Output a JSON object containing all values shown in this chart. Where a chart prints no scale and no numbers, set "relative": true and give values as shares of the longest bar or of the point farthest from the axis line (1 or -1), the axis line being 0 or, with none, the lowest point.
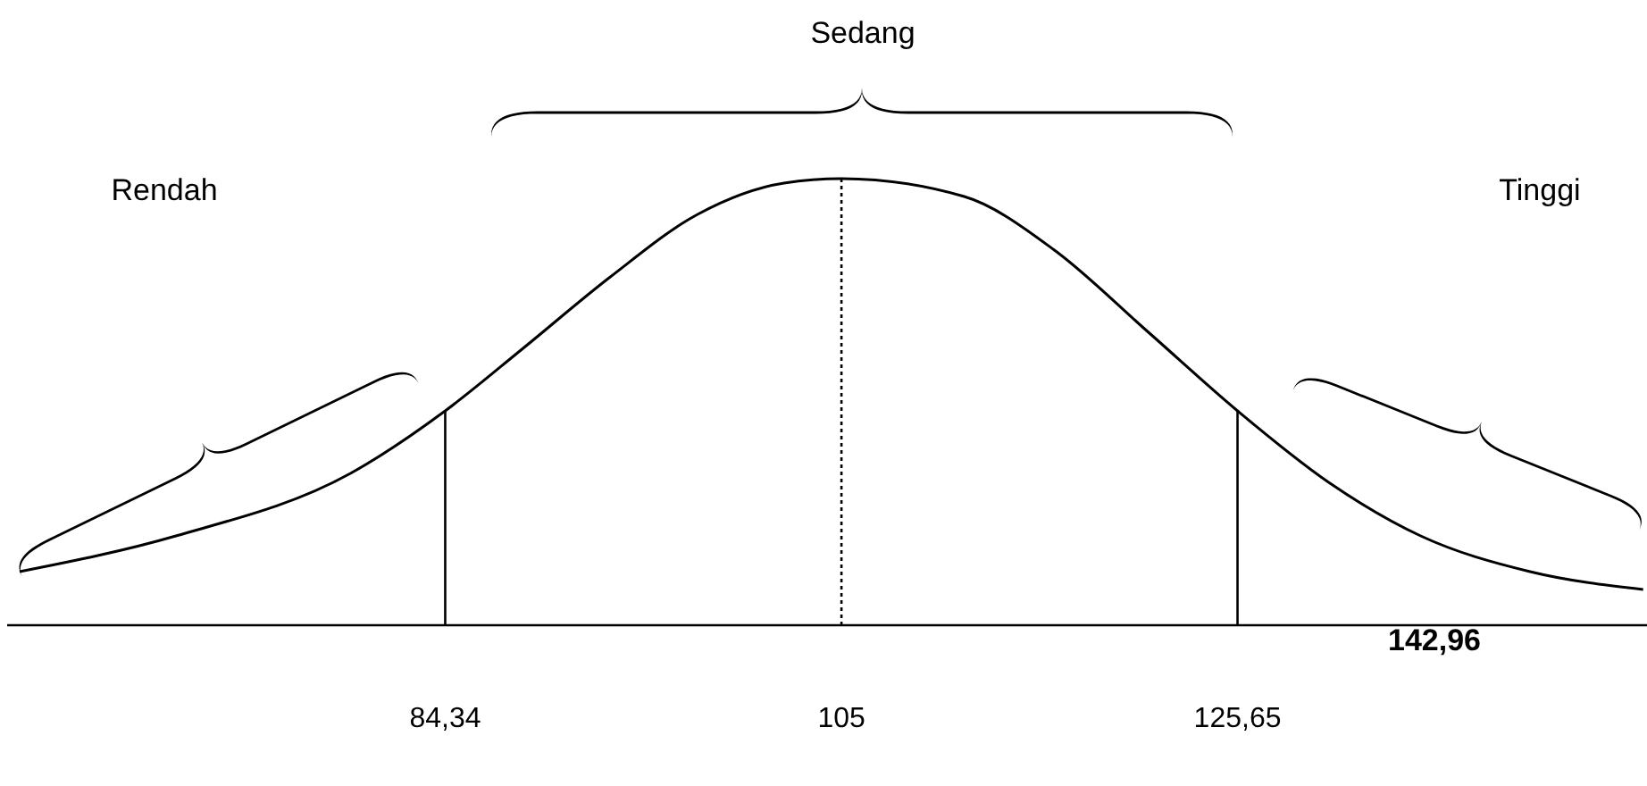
{
  "chart_data": {
    "type": "line",
    "relative": true,
    "color": "#000000",
    "x": [
      62.15,
      70.3,
      79.4,
      84.34,
      88.4,
      92.95,
      97.5,
      102.0,
      105,
      111.4,
      116.1,
      120.9,
      125.65,
      130.4,
      135.2,
      140.9,
      146.8
    ],
    "values": [
      0.12,
      0.2,
      0.34,
      0.48,
      0.62,
      0.78,
      0.92,
      0.99,
      1,
      0.96,
      0.84,
      0.66,
      0.48,
      0.32,
      0.2,
      0.12,
      0.08
    ],
    "xlim": [
      61.5,
      147
    ],
    "xticks": [
      {
        "value": 84.34,
        "label": "84,34"
      },
      105,
      {
        "value": 125.65,
        "label": "125,65"
      }
    ],
    "ref_lines": [
      {
        "axis": "x",
        "value": 84.34,
        "line_style": "solid"
      },
      {
        "axis": "x",
        "value": 105,
        "line_style": "dotted"
      },
      {
        "axis": "x",
        "value": 125.65,
        "line_style": "solid"
      }
    ],
    "annotations": [
      "Rendah",
      "Sedang",
      "Tinggi",
      "142,96"
    ]
  }
}
